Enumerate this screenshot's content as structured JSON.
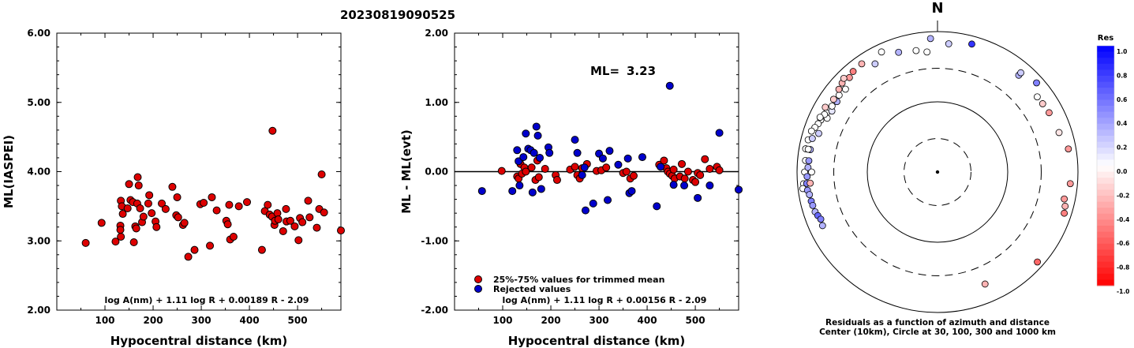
{
  "title": "20230819090525",
  "chart_data": [
    {
      "type": "scatter",
      "ylabel": "ML(IASPEI)",
      "xlabel": "Hypocentral distance (km)",
      "xlim": [
        0,
        590
      ],
      "ylim": [
        2.0,
        6.0
      ],
      "x_ticks": [
        "100",
        "200",
        "300",
        "400",
        "500"
      ],
      "y_ticks": [
        "2.00",
        "3.00",
        "4.00",
        "5.00",
        "6.00"
      ],
      "formula": "log A(nm) + 1.11 log R + 0.00189 R - 2.09",
      "marker_color": "#dd0000",
      "points": [
        [
          60,
          2.97
        ],
        [
          93,
          3.26
        ],
        [
          122,
          2.99
        ],
        [
          133,
          3.06
        ],
        [
          132,
          3.22
        ],
        [
          132,
          3.16
        ],
        [
          133,
          3.58
        ],
        [
          135,
          3.5
        ],
        [
          137,
          3.39
        ],
        [
          147,
          3.47
        ],
        [
          150,
          3.82
        ],
        [
          153,
          3.59
        ],
        [
          158,
          3.56
        ],
        [
          160,
          2.98
        ],
        [
          163,
          3.21
        ],
        [
          165,
          3.18
        ],
        [
          167,
          3.54
        ],
        [
          168,
          3.92
        ],
        [
          170,
          3.8
        ],
        [
          173,
          3.47
        ],
        [
          177,
          3.27
        ],
        [
          180,
          3.35
        ],
        [
          190,
          3.54
        ],
        [
          192,
          3.66
        ],
        [
          197,
          3.4
        ],
        [
          205,
          3.28
        ],
        [
          207,
          3.2
        ],
        [
          218,
          3.54
        ],
        [
          226,
          3.46
        ],
        [
          240,
          3.78
        ],
        [
          248,
          3.37
        ],
        [
          250,
          3.63
        ],
        [
          252,
          3.34
        ],
        [
          262,
          3.23
        ],
        [
          265,
          3.26
        ],
        [
          273,
          2.77
        ],
        [
          286,
          2.87
        ],
        [
          298,
          3.53
        ],
        [
          305,
          3.55
        ],
        [
          318,
          2.93
        ],
        [
          322,
          3.63
        ],
        [
          332,
          3.44
        ],
        [
          352,
          3.29
        ],
        [
          355,
          3.24
        ],
        [
          358,
          3.52
        ],
        [
          360,
          3.02
        ],
        [
          367,
          3.06
        ],
        [
          378,
          3.5
        ],
        [
          395,
          3.56
        ],
        [
          426,
          2.87
        ],
        [
          432,
          3.43
        ],
        [
          438,
          3.52
        ],
        [
          442,
          3.38
        ],
        [
          447,
          3.35
        ],
        [
          448,
          4.59
        ],
        [
          452,
          3.23
        ],
        [
          453,
          3.29
        ],
        [
          458,
          3.4
        ],
        [
          460,
          3.31
        ],
        [
          470,
          3.14
        ],
        [
          476,
          3.46
        ],
        [
          477,
          3.28
        ],
        [
          485,
          3.29
        ],
        [
          494,
          3.21
        ],
        [
          502,
          3.01
        ],
        [
          505,
          3.33
        ],
        [
          510,
          3.27
        ],
        [
          522,
          3.58
        ],
        [
          525,
          3.34
        ],
        [
          540,
          3.19
        ],
        [
          545,
          3.46
        ],
        [
          550,
          3.96
        ],
        [
          555,
          3.41
        ],
        [
          592,
          3.15
        ]
      ]
    },
    {
      "type": "scatter",
      "ylabel": "ML - ML(evt)",
      "xlabel": "Hypocentral distance (km)",
      "xlim": [
        0,
        590
      ],
      "ylim": [
        -2.0,
        2.0
      ],
      "x_ticks": [
        "100",
        "200",
        "300",
        "400",
        "500"
      ],
      "y_ticks": [
        "-2.00",
        "-1.00",
        "0.00",
        "1.00",
        "2.00"
      ],
      "annotation_label": "ML=",
      "annotation_value": "3.23",
      "formula": "log A(nm) + 1.11 log R + 0.00156 R - 2.09",
      "reference_line": 0.0,
      "legend": [
        "25%-75% values for trimmed mean",
        "Rejected values"
      ],
      "series": [
        {
          "name": "25%-75% values for trimmed mean",
          "color": "#dd0000",
          "points": [
            [
              98,
              0.01
            ],
            [
              130,
              -0.07
            ],
            [
              133,
              -0.1
            ],
            [
              137,
              0.11
            ],
            [
              140,
              -0.03
            ],
            [
              145,
              0.06
            ],
            [
              148,
              0.0
            ],
            [
              160,
              0.06
            ],
            [
              168,
              -0.12
            ],
            [
              172,
              0.16
            ],
            [
              175,
              -0.08
            ],
            [
              188,
              0.04
            ],
            [
              210,
              -0.05
            ],
            [
              213,
              -0.12
            ],
            [
              240,
              0.03
            ],
            [
              250,
              0.07
            ],
            [
              255,
              -0.05
            ],
            [
              260,
              -0.1
            ],
            [
              265,
              0.05
            ],
            [
              275,
              0.11
            ],
            [
              295,
              0.01
            ],
            [
              305,
              0.02
            ],
            [
              315,
              0.06
            ],
            [
              350,
              -0.02
            ],
            [
              357,
              0.0
            ],
            [
              365,
              -0.1
            ],
            [
              372,
              -0.06
            ],
            [
              425,
              0.1
            ],
            [
              435,
              0.16
            ],
            [
              440,
              0.05
            ],
            [
              443,
              0.0
            ],
            [
              447,
              -0.03
            ],
            [
              452,
              -0.06
            ],
            [
              455,
              0.03
            ],
            [
              457,
              -0.1
            ],
            [
              468,
              -0.07
            ],
            [
              472,
              0.11
            ],
            [
              478,
              -0.1
            ],
            [
              485,
              0.0
            ],
            [
              495,
              -0.12
            ],
            [
              500,
              -0.15
            ],
            [
              505,
              -0.02
            ],
            [
              510,
              -0.05
            ],
            [
              520,
              0.18
            ],
            [
              530,
              0.04
            ],
            [
              545,
              0.07
            ],
            [
              550,
              0.02
            ]
          ]
        },
        {
          "name": "Rejected values",
          "color": "#0000cc",
          "points": [
            [
              57,
              -0.28
            ],
            [
              120,
              -0.28
            ],
            [
              130,
              0.31
            ],
            [
              133,
              0.15
            ],
            [
              135,
              -0.2
            ],
            [
              143,
              0.21
            ],
            [
              148,
              0.55
            ],
            [
              153,
              0.33
            ],
            [
              158,
              0.31
            ],
            [
              162,
              -0.3
            ],
            [
              165,
              0.27
            ],
            [
              170,
              0.65
            ],
            [
              173,
              0.52
            ],
            [
              177,
              0.2
            ],
            [
              180,
              -0.25
            ],
            [
              195,
              0.35
            ],
            [
              197,
              0.27
            ],
            [
              250,
              0.46
            ],
            [
              255,
              0.27
            ],
            [
              265,
              -0.05
            ],
            [
              270,
              0.06
            ],
            [
              272,
              -0.56
            ],
            [
              288,
              -0.46
            ],
            [
              300,
              0.26
            ],
            [
              308,
              0.19
            ],
            [
              318,
              -0.41
            ],
            [
              322,
              0.3
            ],
            [
              340,
              0.1
            ],
            [
              360,
              0.19
            ],
            [
              363,
              -0.31
            ],
            [
              368,
              -0.28
            ],
            [
              390,
              0.21
            ],
            [
              420,
              -0.5
            ],
            [
              428,
              0.07
            ],
            [
              447,
              1.24
            ],
            [
              455,
              -0.19
            ],
            [
              477,
              -0.2
            ],
            [
              505,
              -0.38
            ],
            [
              530,
              -0.2
            ],
            [
              550,
              0.56
            ],
            [
              595,
              -0.26
            ]
          ]
        }
      ]
    },
    {
      "type": "polar_scatter",
      "north_label": "N",
      "colorbar_title": "Res",
      "colorbar_ticks": [
        "1.0",
        "0.8",
        "0.6",
        "0.4",
        "0.2",
        "0.0",
        "-0.2",
        "-0.4",
        "-0.6",
        "-0.8",
        "-1.0"
      ],
      "caption_line1": "Residuals as a function of azimuth and distance",
      "caption_line2": "Center (10km), Circle at 30, 100, 300 and 1000 km",
      "points": [
        [
          -62,
          620,
          0.0
        ],
        [
          -64,
          560,
          0.0
        ],
        [
          -60,
          545,
          0.1
        ],
        [
          -55,
          560,
          0.3
        ],
        [
          -58,
          590,
          0.0
        ],
        [
          -52,
          600,
          0.0
        ],
        [
          -48,
          580,
          0.0
        ],
        [
          -63,
          640,
          0.0
        ],
        [
          -66,
          660,
          0.0
        ],
        [
          -68,
          680,
          0.0
        ],
        [
          -70,
          720,
          0.0
        ],
        [
          -72,
          600,
          0.2
        ],
        [
          -65,
          700,
          0.0
        ],
        [
          -72,
          770,
          0.0
        ],
        [
          -76,
          790,
          0.0
        ],
        [
          -80,
          805,
          0.0
        ],
        [
          -85,
          770,
          0.0
        ],
        [
          -90,
          780,
          0.0
        ],
        [
          -95,
          820,
          0.0
        ],
        [
          -97,
          855,
          0.0
        ],
        [
          -75,
          700,
          0.2
        ],
        [
          -80,
          690,
          0.3
        ],
        [
          -85,
          690,
          0.4
        ],
        [
          -88,
          700,
          0.3
        ],
        [
          -92,
          720,
          0.4
        ],
        [
          -95,
          740,
          0.5
        ],
        [
          -98,
          740,
          0.4
        ],
        [
          -100,
          710,
          0.3
        ],
        [
          -103,
          700,
          0.5
        ],
        [
          -105,
          690,
          0.4
        ],
        [
          -108,
          680,
          0.3
        ],
        [
          -110,
          650,
          0.6
        ],
        [
          -112,
          620,
          0.5
        ],
        [
          -115,
          640,
          0.3
        ],
        [
          -95,
          660,
          -0.3
        ],
        [
          -80,
          740,
          0.0
        ],
        [
          -90,
          620,
          0.0
        ],
        [
          -60,
          700,
          -0.2
        ],
        [
          -55,
          640,
          -0.2
        ],
        [
          -50,
          680,
          -0.3
        ],
        [
          -47,
          720,
          -0.3
        ],
        [
          -43,
          690,
          -0.4
        ],
        [
          -40,
          740,
          -0.5
        ],
        [
          -45,
          770,
          -0.2
        ],
        [
          -35,
          760,
          -0.3
        ],
        [
          -30,
          600,
          0.2
        ],
        [
          -25,
          770,
          0.0
        ],
        [
          -18,
          620,
          0.3
        ],
        [
          -10,
          570,
          0.0
        ],
        [
          -5,
          520,
          0.0
        ],
        [
          -3,
          800,
          0.3
        ],
        [
          5,
          680,
          0.2
        ],
        [
          15,
          770,
          0.8
        ],
        [
          40,
          630,
          0.3
        ],
        [
          40,
          700,
          0.2
        ],
        [
          48,
          790,
          0.5
        ],
        [
          53,
          600,
          0.0
        ],
        [
          57,
          610,
          -0.2
        ],
        [
          62,
          630,
          -0.4
        ],
        [
          72,
          660,
          -0.1
        ],
        [
          80,
          780,
          -0.4
        ],
        [
          95,
          790,
          -0.4
        ],
        [
          102,
          700,
          -0.4
        ],
        [
          105,
          760,
          -0.3
        ],
        [
          108,
          790,
          -0.5
        ],
        [
          132,
          820,
          -0.6
        ],
        [
          157,
          540,
          -0.3
        ]
      ]
    }
  ]
}
